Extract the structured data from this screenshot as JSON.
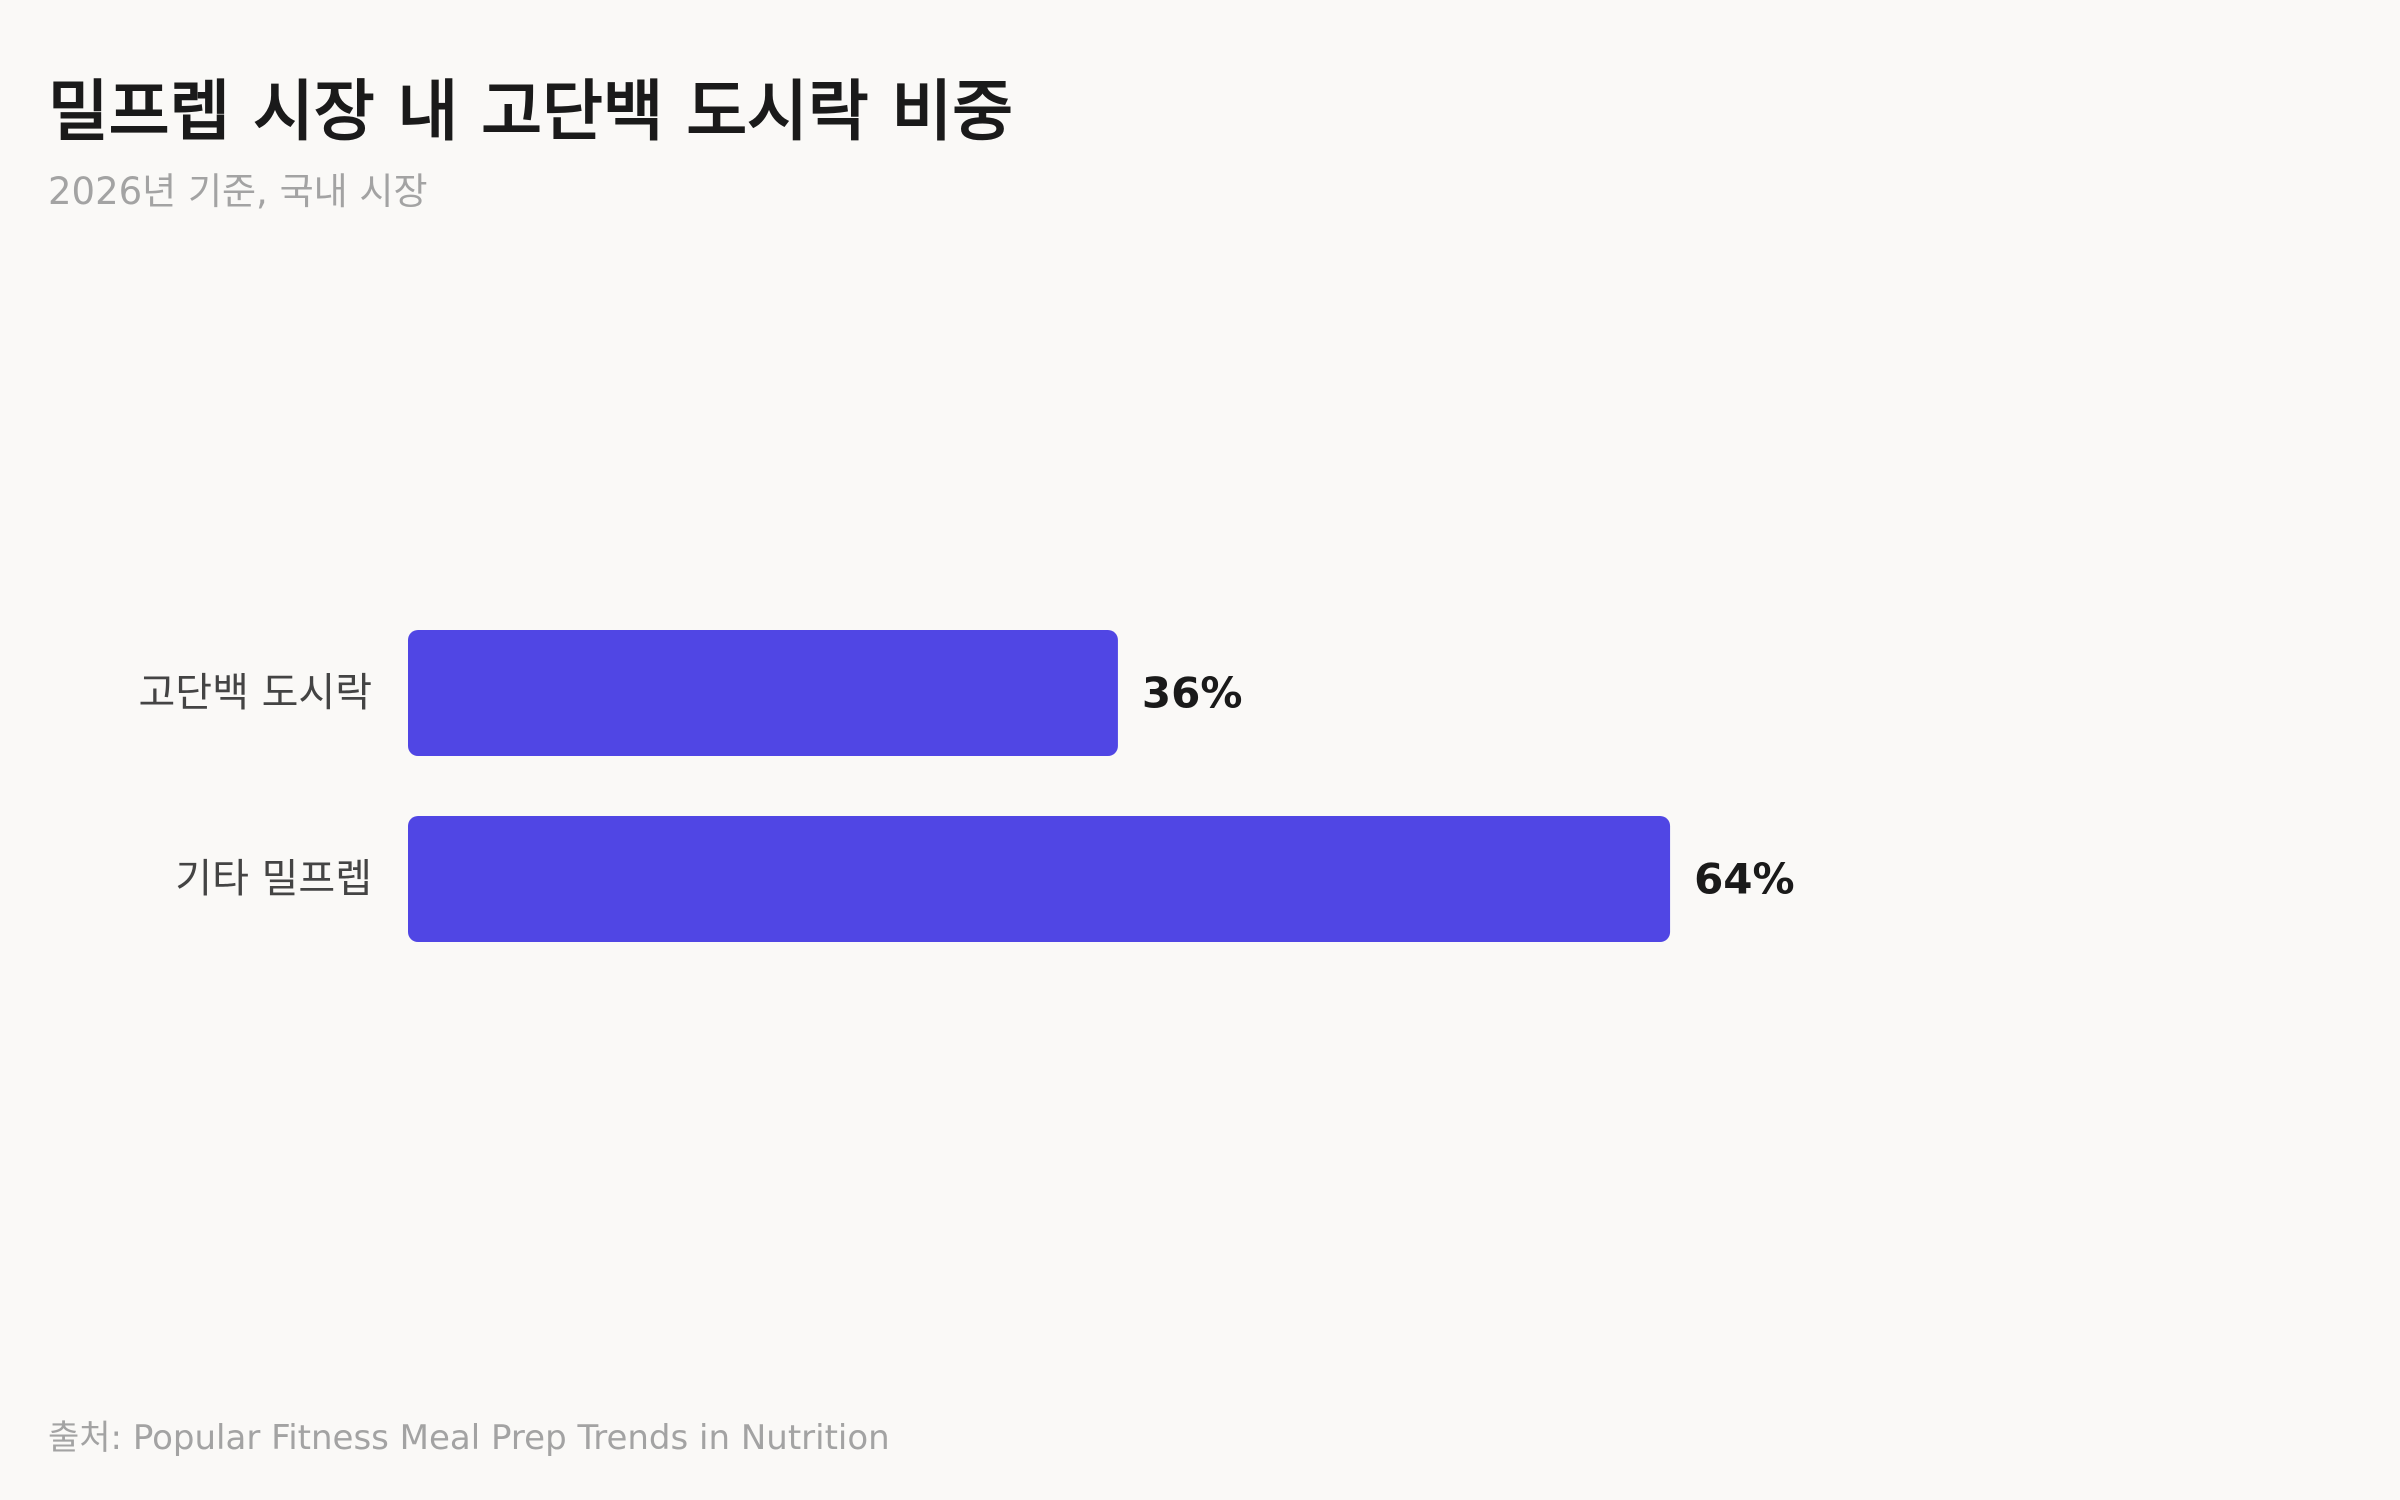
{
  "chart_data": {
    "type": "bar",
    "orientation": "horizontal",
    "title": "밀프렙 시장 내 고단백 도시락 비중",
    "subtitle": "2026년 기준, 국내 시장",
    "source": "출처: Popular Fitness Meal Prep Trends in Nutrition",
    "categories": [
      "고단백 도시락",
      "기타 밀프렙"
    ],
    "values": [
      36,
      64
    ],
    "value_labels": [
      "36%",
      "64%"
    ],
    "xlim": [
      0,
      100
    ],
    "grid": false,
    "legend": "none",
    "bar_color": "#5046e4"
  }
}
